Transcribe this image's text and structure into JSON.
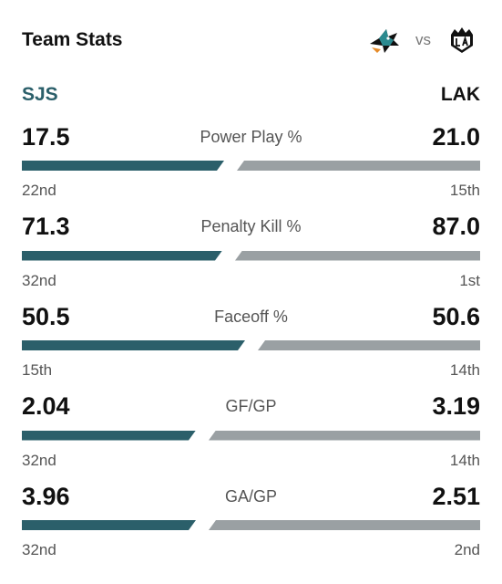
{
  "header": {
    "title": "Team Stats",
    "vs_label": "vs",
    "home_logo_icon": "sharks-logo-icon",
    "away_logo_icon": "kings-logo-icon"
  },
  "teams": {
    "home": "SJS",
    "away": "LAK"
  },
  "colors": {
    "home": "#2b5f6a",
    "away": "#9aa0a3"
  },
  "stats": [
    {
      "label": "Power Play %",
      "home": "17.5",
      "away": "21.0",
      "home_rank": "22nd",
      "away_rank": "15th",
      "home_share": 0.455
    },
    {
      "label": "Penalty Kill %",
      "home": "71.3",
      "away": "87.0",
      "home_rank": "32nd",
      "away_rank": "1st",
      "home_share": 0.45
    },
    {
      "label": "Faceoff %",
      "home": "50.5",
      "away": "50.6",
      "home_rank": "15th",
      "away_rank": "14th",
      "home_share": 0.5
    },
    {
      "label": "GF/GP",
      "home": "2.04",
      "away": "3.19",
      "home_rank": "32nd",
      "away_rank": "14th",
      "home_share": 0.39
    },
    {
      "label": "GA/GP",
      "home": "3.96",
      "away": "2.51",
      "home_rank": "32nd",
      "away_rank": "2nd",
      "home_share": 0.39
    }
  ]
}
